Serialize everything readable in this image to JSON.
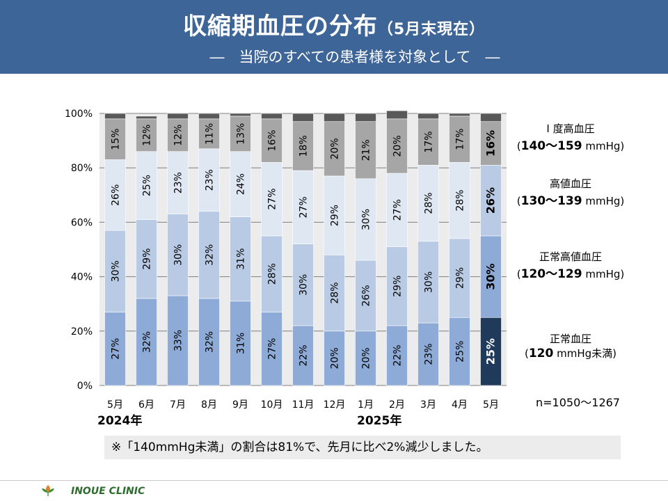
{
  "header": {
    "title": "収縮期血圧の分布",
    "title_note": "（5月末現在）",
    "subtitle": "―　当院のすべての患者様を対象として　―"
  },
  "chart_data": {
    "type": "bar",
    "stacked": true,
    "percent_stacked": true,
    "categories": [
      "5月",
      "6月",
      "7月",
      "8月",
      "9月",
      "10月",
      "11月",
      "12月",
      "1月",
      "2月",
      "3月",
      "4月",
      "5月"
    ],
    "year_labels": [
      {
        "label": "2024年",
        "index": 0
      },
      {
        "label": "2025年",
        "index": 8
      }
    ],
    "ylim": [
      0,
      100
    ],
    "yticks": [
      "0%",
      "20%",
      "40%",
      "60%",
      "80%",
      "100%"
    ],
    "grid": true,
    "series": [
      {
        "name": "正常血圧",
        "values": [
          27,
          32,
          33,
          32,
          31,
          27,
          22,
          20,
          20,
          22,
          23,
          25,
          25
        ],
        "color": "#8eaad6",
        "highlight_color": "#203a5c"
      },
      {
        "name": "正常高値血圧",
        "values": [
          30,
          29,
          30,
          32,
          31,
          28,
          30,
          28,
          26,
          29,
          30,
          29,
          30
        ],
        "color": "#b9cbe4",
        "highlight_color": "#8eaad6"
      },
      {
        "name": "高値血圧",
        "values": [
          26,
          25,
          23,
          23,
          24,
          27,
          27,
          29,
          30,
          27,
          28,
          28,
          26
        ],
        "color": "#dfe7f2",
        "highlight_color": "#b9cbe4"
      },
      {
        "name": "I 度高血圧",
        "values": [
          15,
          12,
          12,
          11,
          13,
          16,
          18,
          20,
          21,
          20,
          17,
          17,
          16
        ],
        "color": "#a6a6a6",
        "highlight_color": "#a6a6a6"
      },
      {
        "name": "",
        "values": [
          2,
          1,
          2,
          2,
          1,
          2,
          3,
          3,
          3,
          3,
          2,
          1,
          3
        ],
        "color": "#595959",
        "highlight_color": "#595959"
      }
    ],
    "highlight_index": 12
  },
  "legend": [
    {
      "name": "I 度高血圧",
      "range_open": "(",
      "range_value": "140～159",
      "range_unit": " mmHg)"
    },
    {
      "name": "高値血圧",
      "range_open": "(",
      "range_value": "130～139",
      "range_unit": " mmHg)"
    },
    {
      "name": "正常高値血圧",
      "range_open": "(",
      "range_value": "120～129",
      "range_unit": " mmHg)"
    },
    {
      "name": "正常血圧",
      "range_open": "(",
      "range_value": "120",
      "range_unit": " mmHg未満)"
    }
  ],
  "sample_size": "n=1050～1267",
  "note": "※「140mmHg未満」の割合は81%で、先月に比べ2%減少しました。",
  "footer": {
    "clinic": "INOUE CLINIC",
    "logo_text": "INOUE CLINIC"
  }
}
